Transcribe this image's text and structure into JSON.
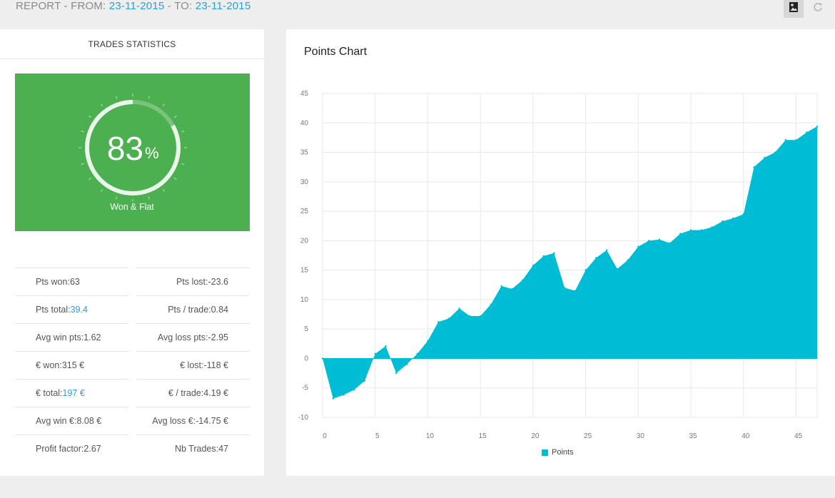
{
  "header": {
    "prefix": "REPORT - FROM: ",
    "from_date": "23-11-2015",
    "middle": " - TO: ",
    "to_date": "23-11-2015"
  },
  "toolbar": {
    "image_icon": "image-icon",
    "refresh_icon": "refresh-icon"
  },
  "trades_stats": {
    "title": "TRADES STATISTICS",
    "gauge": {
      "value": "83",
      "unit": "%",
      "caption": "Won & Flat",
      "fraction": 0.83
    },
    "left_rows": [
      {
        "label": "Pts won: ",
        "value": "63",
        "highlight": false
      },
      {
        "label": "Pts total: ",
        "value": "39.4",
        "highlight": true
      },
      {
        "label": "Avg win pts: ",
        "value": "1.62",
        "highlight": false
      },
      {
        "label": "€ won: ",
        "value": "315 €",
        "highlight": false
      },
      {
        "label": "€ total: ",
        "value": "197 €",
        "highlight": true
      },
      {
        "label": "Avg win €: ",
        "value": "8.08 €",
        "highlight": false
      },
      {
        "label": "Profit factor: ",
        "value": "2.67",
        "highlight": false
      }
    ],
    "right_rows": [
      {
        "label": "Pts lost: ",
        "value": "-23.6"
      },
      {
        "label": "Pts / trade: ",
        "value": "0.84"
      },
      {
        "label": "Avg loss pts: ",
        "value": "-2.95"
      },
      {
        "label": "€ lost: ",
        "value": "-118 €"
      },
      {
        "label": "€ / trade: ",
        "value": "4.19 €"
      },
      {
        "label": "Avg loss €: ",
        "value": "-14.75 €"
      },
      {
        "label": "Nb Trades: ",
        "value": "47"
      }
    ]
  },
  "colors": {
    "accent": "#29a0d8",
    "green_panel": "#4caf50",
    "series": "#00bcd4"
  },
  "chart_data": {
    "type": "area",
    "title": "Points Chart",
    "x": [
      0,
      1,
      2,
      3,
      4,
      5,
      6,
      7,
      8,
      9,
      10,
      11,
      12,
      13,
      14,
      15,
      16,
      17,
      18,
      19,
      20,
      21,
      22,
      23,
      24,
      25,
      26,
      27,
      28,
      29,
      30,
      31,
      32,
      33,
      34,
      35,
      36,
      37,
      38,
      39,
      40,
      41,
      42,
      43,
      44,
      45,
      46,
      47
    ],
    "series": [
      {
        "name": "Points",
        "values": [
          0,
          -6.8,
          -6.2,
          -5.3,
          -3.8,
          0.8,
          2.1,
          -2.5,
          -1,
          0.8,
          3,
          6.2,
          6.8,
          8.5,
          7.2,
          7.2,
          9.2,
          12.3,
          11.8,
          13.3,
          15.8,
          17.4,
          17.9,
          12,
          11.5,
          15,
          17.1,
          18.4,
          15.2,
          16.7,
          19,
          20,
          20.2,
          19.6,
          21.2,
          21.8,
          21.8,
          22.3,
          23.3,
          23.8,
          24.5,
          32.5,
          34.1,
          35,
          37.1,
          37.1,
          38.4,
          39.4
        ]
      }
    ],
    "y_ticks": [
      -10,
      -5,
      0,
      5,
      10,
      15,
      20,
      25,
      30,
      35,
      40,
      45
    ],
    "x_ticks": [
      0,
      5,
      10,
      15,
      20,
      25,
      30,
      35,
      40,
      45
    ],
    "xlim": [
      0,
      47
    ],
    "ylim": [
      -10,
      45
    ],
    "grid": true,
    "legend": "bottom-center"
  }
}
